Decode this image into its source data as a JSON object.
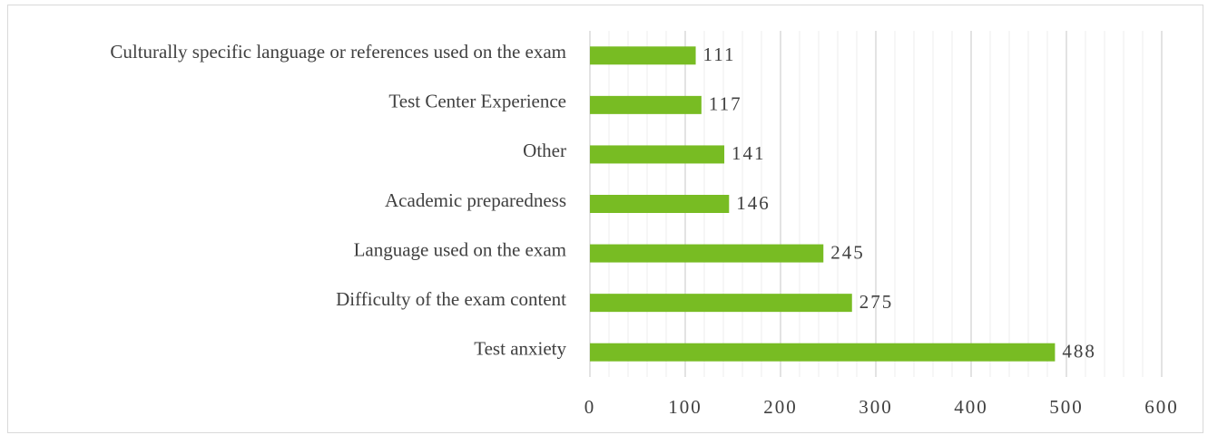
{
  "chart_data": {
    "type": "barh",
    "categories": [
      "Culturally specific language or references used on the exam",
      "Test Center Experience",
      "Other",
      "Academic preparedness",
      "Language used on the exam",
      "Difficulty of the exam content",
      "Test anxiety"
    ],
    "values": [
      111,
      117,
      141,
      146,
      245,
      275,
      488
    ],
    "color": "#78bc23",
    "xlim": [
      0,
      600
    ],
    "xticks": [
      0,
      100,
      200,
      300,
      400,
      500,
      600
    ],
    "grid": true,
    "minor_grid": true
  }
}
